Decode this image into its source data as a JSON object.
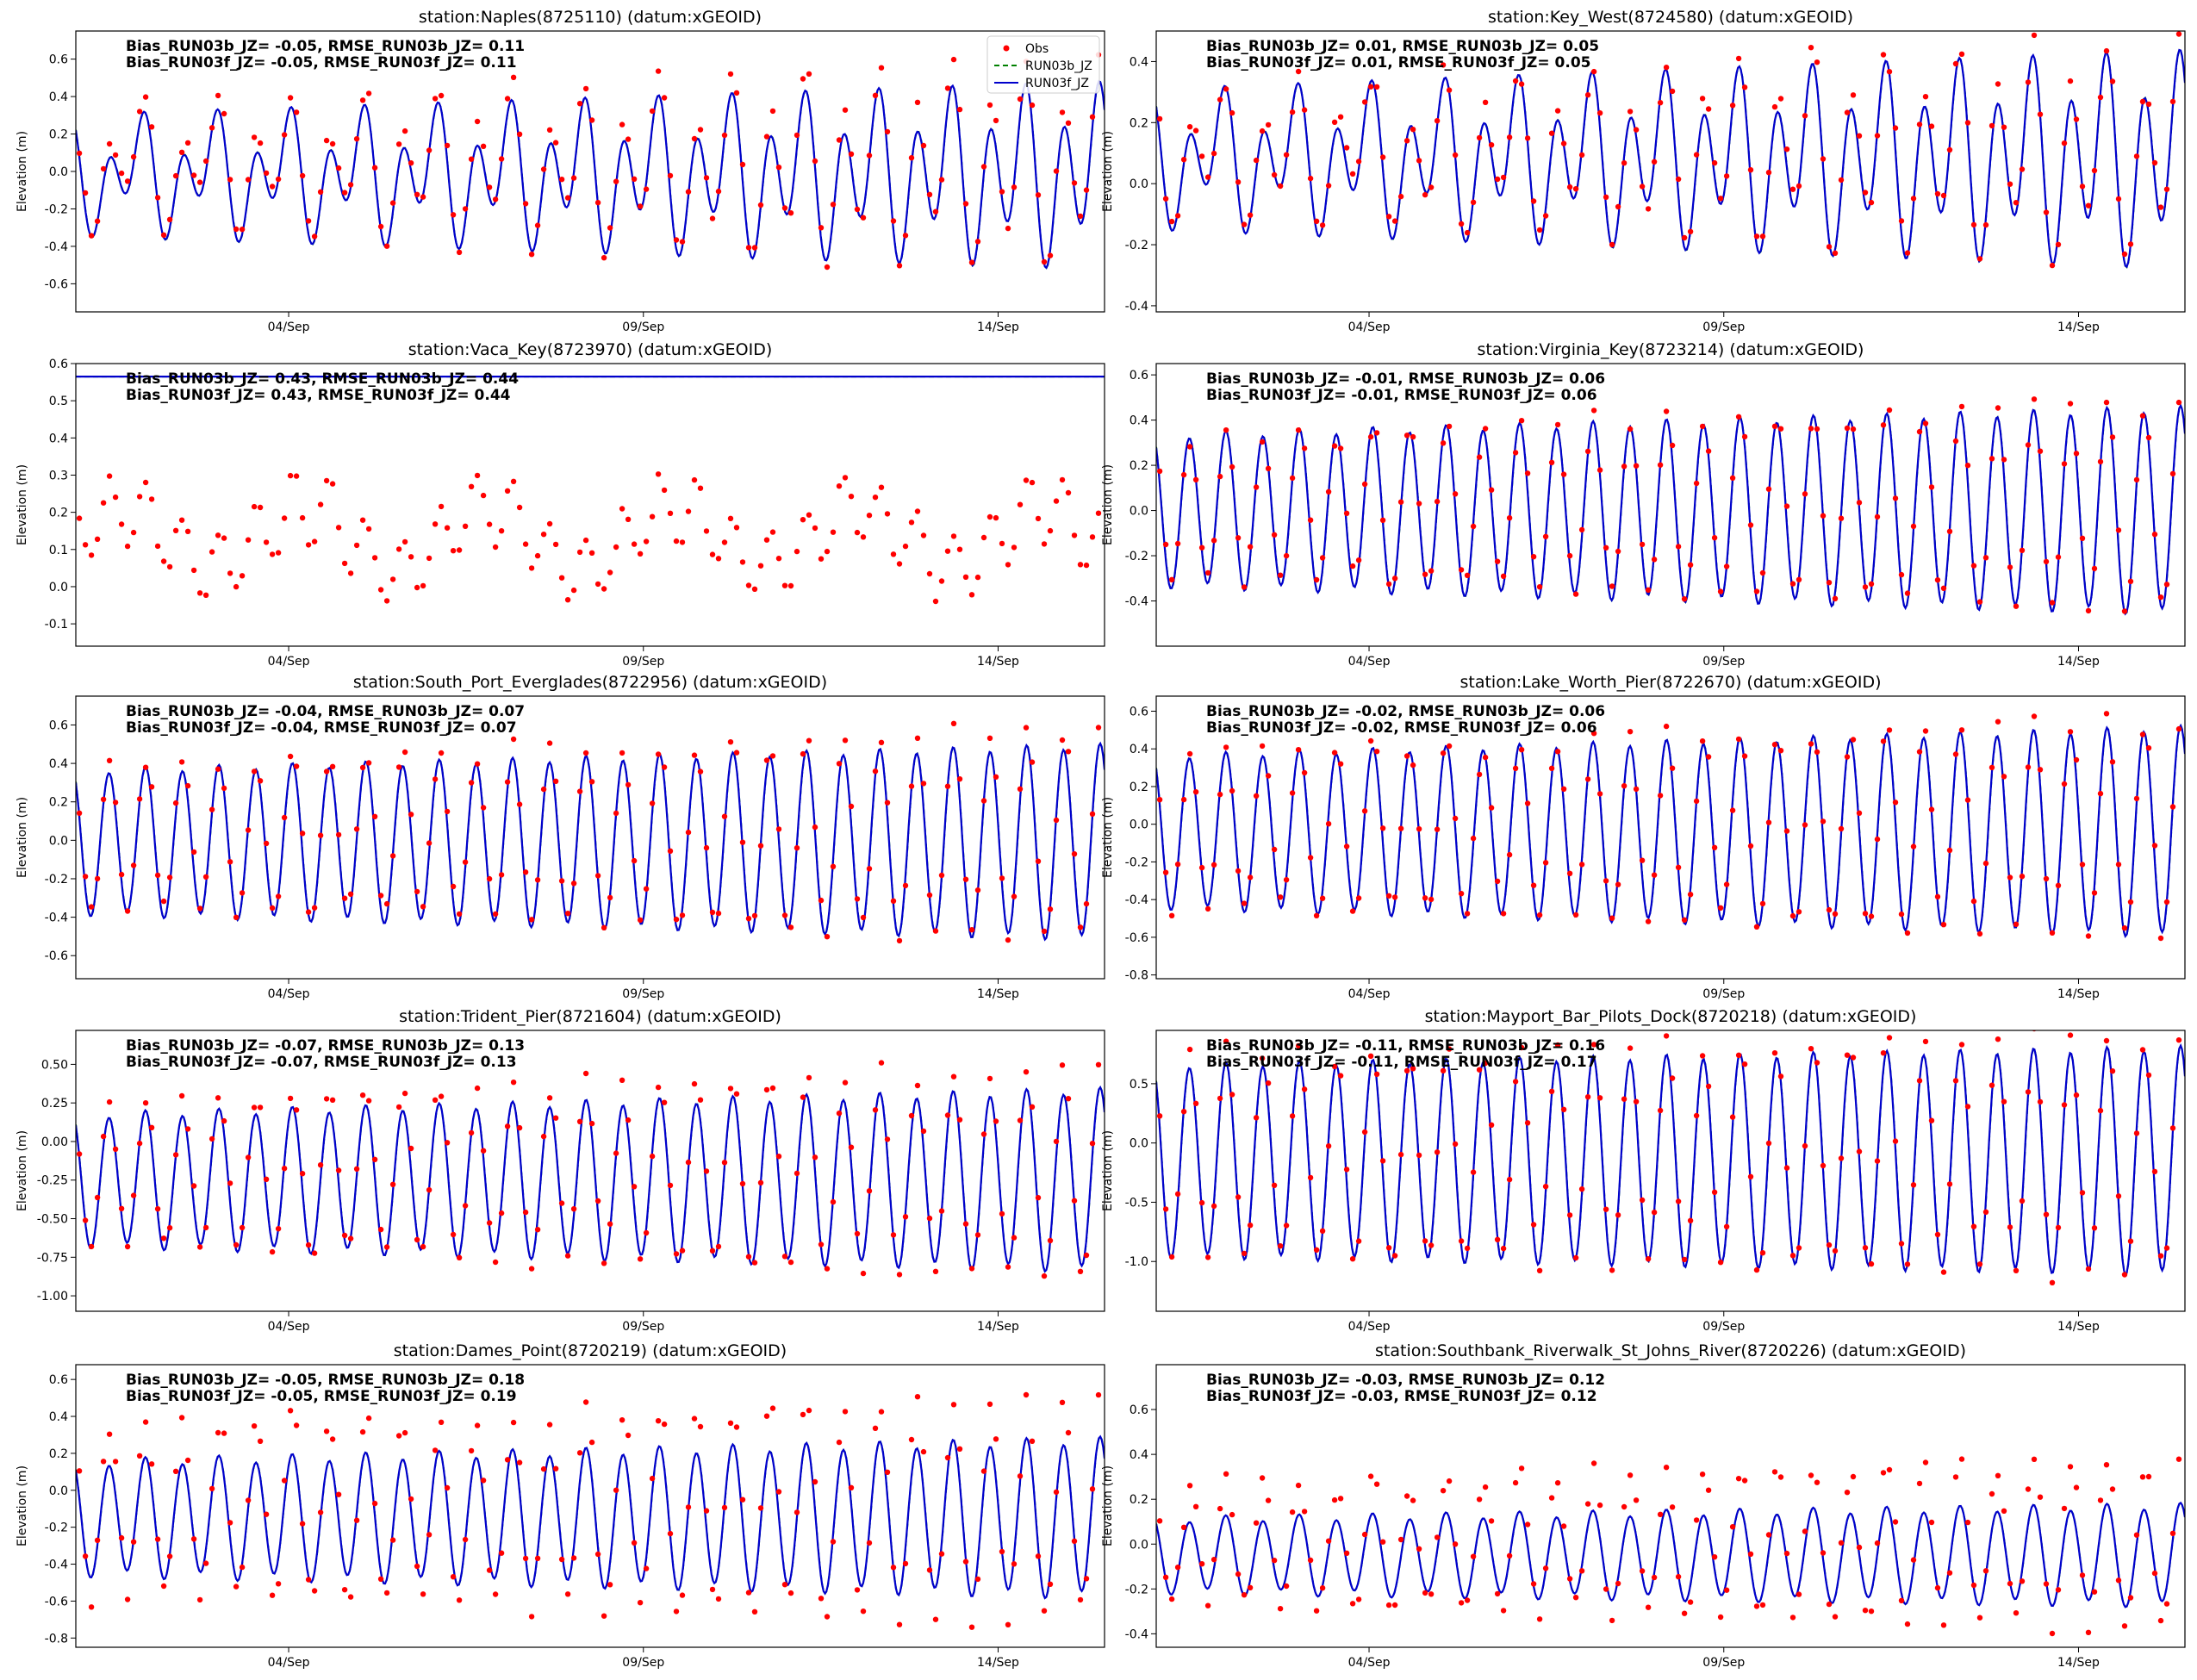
{
  "figure": {
    "x_ticks": [
      "04/Sep",
      "09/Sep",
      "14/Sep"
    ],
    "ylabel": "Elevation (m)",
    "legend": [
      "Obs",
      "RUN03b_JZ",
      "RUN03f_JZ"
    ],
    "colors": {
      "obs": "#ff0000",
      "run03b": "#008000",
      "run03f": "#0000cc"
    }
  },
  "chart_data": [
    {
      "type": "line",
      "title": "station:Naples(8725110) (datum:xGEOID)",
      "ylim": [
        -0.75,
        0.75
      ],
      "yticks": [
        "-0.6",
        "-0.4",
        "-0.2",
        "0.0",
        "0.2",
        "0.4",
        "0.6"
      ],
      "stats": [
        "Bias_RUN03b_JZ= -0.05, RMSE_RUN03b_JZ=  0.11",
        "Bias_RUN03f_JZ= -0.05, RMSE_RUN03f_JZ=  0.11"
      ],
      "legend": true,
      "model": {
        "mean": -0.02,
        "amp_start": 0.2,
        "amp_end": 0.38,
        "diurnal": 0.17
      },
      "obs": {
        "mean": 0.03,
        "amp_start": 0.22,
        "amp_end": 0.45,
        "noise": 0.05
      }
    },
    {
      "type": "line",
      "title": "station:Key_West(8724580) (datum:xGEOID)",
      "ylim": [
        -0.42,
        0.5
      ],
      "yticks": [
        "-0.4",
        "-0.2",
        "0.0",
        "0.2",
        "0.4"
      ],
      "stats": [
        "Bias_RUN03b_JZ=  0.01, RMSE_RUN03b_JZ=  0.05",
        "Bias_RUN03f_JZ=  0.01, RMSE_RUN03f_JZ=  0.05"
      ],
      "model": {
        "mean": 0.08,
        "amp_start": 0.15,
        "amp_end": 0.28,
        "diurnal": 0.11
      },
      "obs": {
        "mean": 0.1,
        "amp_start": 0.15,
        "amp_end": 0.3,
        "noise": 0.04
      }
    },
    {
      "type": "line",
      "title": "station:Vaca_Key(8723970) (datum:xGEOID)",
      "ylim": [
        -0.16,
        0.6
      ],
      "yticks": [
        "-0.1",
        "0.0",
        "0.1",
        "0.2",
        "0.3",
        "0.4",
        "0.5",
        "0.6"
      ],
      "stats": [
        "Bias_RUN03b_JZ=  0.43, RMSE_RUN03b_JZ=  0.44",
        "Bias_RUN03f_JZ=  0.43, RMSE_RUN03f_JZ=  0.44"
      ],
      "model": {
        "flat": 0.565
      },
      "obs": {
        "mean": 0.13,
        "amp_start": 0.09,
        "amp_end": 0.09,
        "noise": 0.02,
        "slow": 0.08
      }
    },
    {
      "type": "line",
      "title": "station:Virginia_Key(8723214) (datum:xGEOID)",
      "ylim": [
        -0.6,
        0.65
      ],
      "yticks": [
        "-0.4",
        "-0.2",
        "0.0",
        "0.2",
        "0.4",
        "0.6"
      ],
      "stats": [
        "Bias_RUN03b_JZ= -0.01, RMSE_RUN03b_JZ=  0.06",
        "Bias_RUN03f_JZ= -0.01, RMSE_RUN03f_JZ=  0.06"
      ],
      "model": {
        "mean": 0.0,
        "amp_start": 0.33,
        "amp_end": 0.45,
        "diurnal": 0.02
      },
      "obs": {
        "mean": 0.02,
        "amp_start": 0.3,
        "amp_end": 0.47,
        "noise": 0.04
      }
    },
    {
      "type": "line",
      "title": "station:South_Port_Everglades(8722956) (datum:xGEOID)",
      "ylim": [
        -0.72,
        0.75
      ],
      "yticks": [
        "-0.6",
        "-0.4",
        "-0.2",
        "0.0",
        "0.2",
        "0.4",
        "0.6"
      ],
      "stats": [
        "Bias_RUN03b_JZ= -0.04, RMSE_RUN03b_JZ=  0.07",
        "Bias_RUN03f_JZ= -0.04, RMSE_RUN03f_JZ=  0.07"
      ],
      "model": {
        "mean": -0.01,
        "amp_start": 0.37,
        "amp_end": 0.5,
        "diurnal": 0.02
      },
      "obs": {
        "mean": 0.03,
        "amp_start": 0.36,
        "amp_end": 0.55,
        "noise": 0.05
      }
    },
    {
      "type": "line",
      "title": "station:Lake_Worth_Pier(8722670) (datum:xGEOID)",
      "ylim": [
        -0.82,
        0.68
      ],
      "yticks": [
        "-0.8",
        "-0.6",
        "-0.4",
        "-0.2",
        "0.0",
        "0.2",
        "0.4",
        "0.6"
      ],
      "stats": [
        "Bias_RUN03b_JZ= -0.02, RMSE_RUN03b_JZ=  0.06",
        "Bias_RUN03f_JZ= -0.02, RMSE_RUN03f_JZ=  0.06"
      ],
      "model": {
        "mean": -0.04,
        "amp_start": 0.4,
        "amp_end": 0.55,
        "diurnal": 0.02
      },
      "obs": {
        "mean": -0.02,
        "amp_start": 0.4,
        "amp_end": 0.58,
        "noise": 0.05
      }
    },
    {
      "type": "line",
      "title": "station:Trident_Pier(8721604) (datum:xGEOID)",
      "ylim": [
        -1.1,
        0.72
      ],
      "yticks": [
        "-1.00",
        "-0.75",
        "-0.50",
        "-0.25",
        "0.00",
        "0.25",
        "0.50"
      ],
      "stats": [
        "Bias_RUN03b_JZ= -0.07, RMSE_RUN03b_JZ=  0.13",
        "Bias_RUN03f_JZ= -0.07, RMSE_RUN03f_JZ=  0.13"
      ],
      "model": {
        "mean": -0.25,
        "amp_start": 0.42,
        "amp_end": 0.58,
        "diurnal": 0.03
      },
      "obs": {
        "mean": -0.2,
        "amp_start": 0.45,
        "amp_end": 0.7,
        "noise": 0.07
      }
    },
    {
      "type": "line",
      "title": "station:Mayport_Bar_Pilots_Dock(8720218) (datum:xGEOID)",
      "ylim": [
        -1.42,
        0.95
      ],
      "yticks": [
        "-1.0",
        "-0.5",
        "0.0",
        "0.5"
      ],
      "stats": [
        "Bias_RUN03b_JZ= -0.11, RMSE_RUN03b_JZ=  0.16",
        "Bias_RUN03f_JZ= -0.11, RMSE_RUN03f_JZ=  0.17"
      ],
      "model": {
        "mean": -0.15,
        "amp_start": 0.8,
        "amp_end": 0.95,
        "diurnal": 0.03
      },
      "obs": {
        "mean": -0.1,
        "amp_start": 0.85,
        "amp_end": 1.0,
        "noise": 0.08
      }
    },
    {
      "type": "line",
      "title": "station:Dames_Point(8720219) (datum:xGEOID)",
      "ylim": [
        -0.85,
        0.68
      ],
      "yticks": [
        "-0.8",
        "-0.6",
        "-0.4",
        "-0.2",
        "0.0",
        "0.2",
        "0.4",
        "0.6"
      ],
      "stats": [
        "Bias_RUN03b_JZ= -0.05, RMSE_RUN03b_JZ=  0.18",
        "Bias_RUN03f_JZ= -0.05, RMSE_RUN03f_JZ=  0.19"
      ],
      "model": {
        "mean": -0.15,
        "amp_start": 0.3,
        "amp_end": 0.42,
        "diurnal": 0.03
      },
      "obs": {
        "mean": -0.1,
        "amp_start": 0.45,
        "amp_end": 0.6,
        "noise": 0.07
      }
    },
    {
      "type": "line",
      "title": "station:Southbank_Riverwalk_St_Johns_River(8720226) (datum:xGEOID)",
      "ylim": [
        -0.46,
        0.8
      ],
      "yticks": [
        "-0.4",
        "-0.2",
        "0.0",
        "0.2",
        "0.4",
        "0.6"
      ],
      "stats": [
        "Bias_RUN03b_JZ= -0.03, RMSE_RUN03b_JZ=  0.12",
        "Bias_RUN03f_JZ= -0.03, RMSE_RUN03f_JZ=  0.12"
      ],
      "model": {
        "mean": -0.05,
        "amp_start": 0.16,
        "amp_end": 0.22,
        "diurnal": 0.02
      },
      "obs": {
        "mean": 0.0,
        "amp_start": 0.25,
        "amp_end": 0.38,
        "noise": 0.05
      }
    }
  ]
}
